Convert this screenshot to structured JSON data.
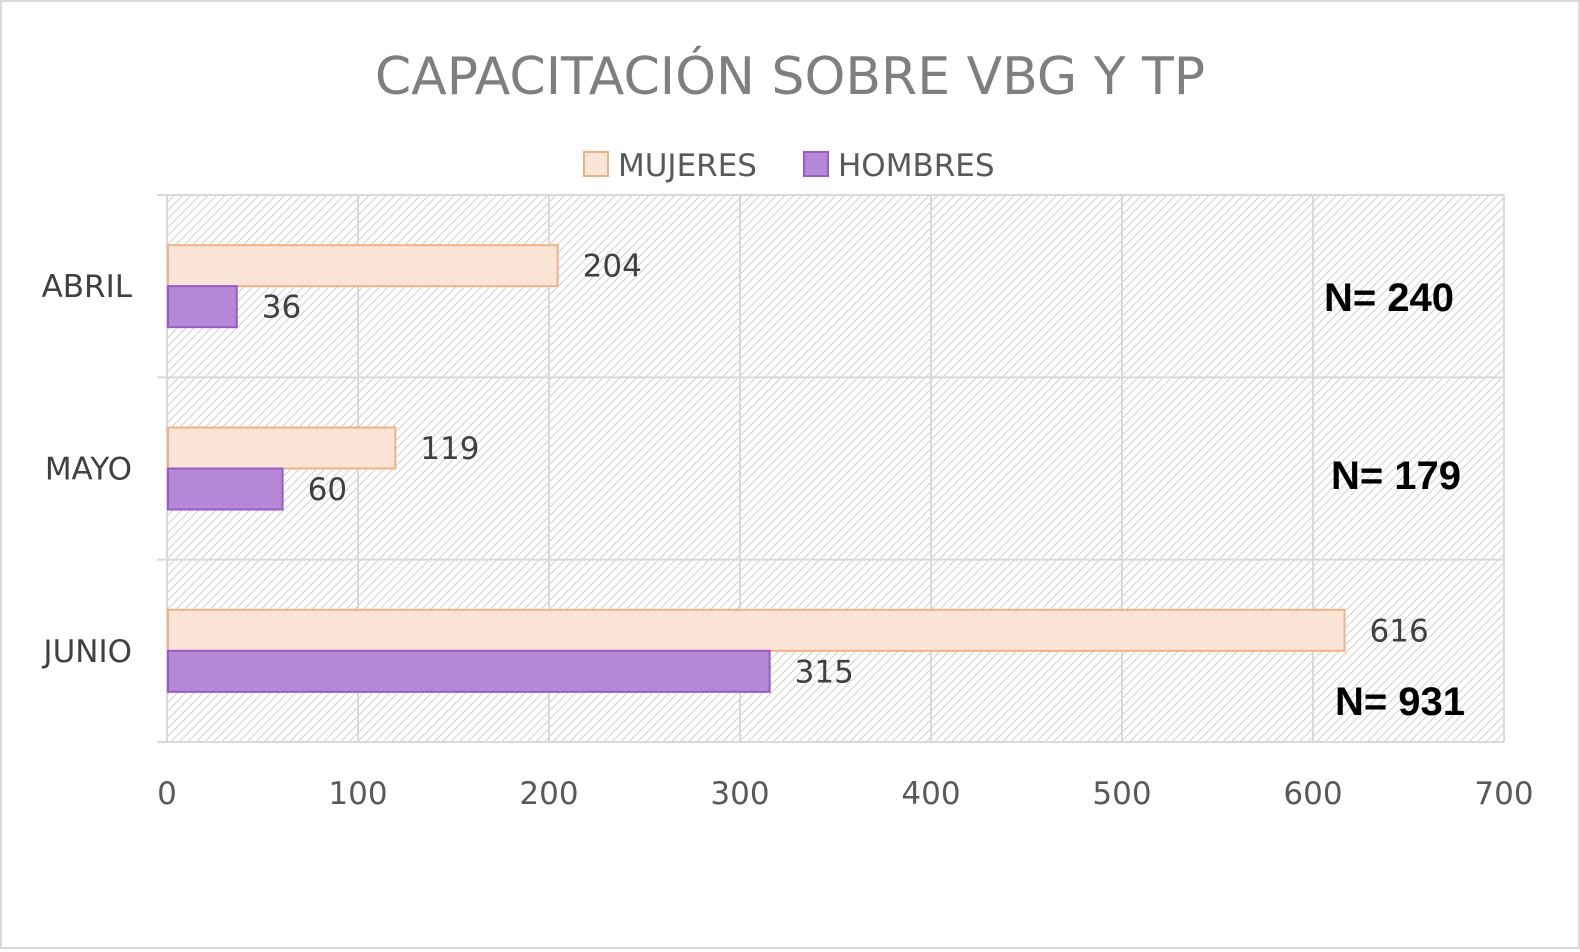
{
  "chart_data": {
    "type": "bar",
    "orientation": "horizontal",
    "title": "CAPACITACIÓN SOBRE VBG Y TP",
    "categories": [
      "ABRIL",
      "MAYO",
      "JUNIO"
    ],
    "series": [
      {
        "name": "MUJERES",
        "values": [
          204,
          119,
          616
        ],
        "color": "#fbe5d6",
        "border": "#f4b183"
      },
      {
        "name": "HOMBRES",
        "values": [
          36,
          60,
          315
        ],
        "color": "#b589d8",
        "border": "#9b59c9"
      }
    ],
    "xlim": [
      0,
      700
    ],
    "xticks": [
      "0",
      "100",
      "200",
      "300",
      "400",
      "500",
      "600",
      "700"
    ],
    "xlabel": "",
    "ylabel": "",
    "grid": true,
    "legend_position": "top",
    "annotations": [
      "N= 240",
      "N= 179",
      "N= 931"
    ]
  }
}
